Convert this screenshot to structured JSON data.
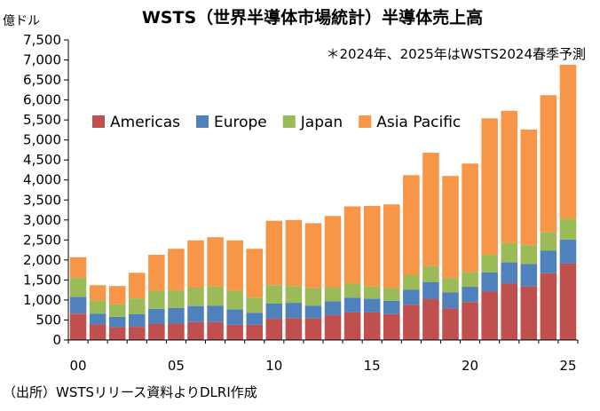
{
  "chart_data": {
    "type": "bar",
    "stacked": true,
    "title": "WSTS（世界半導体市場統計）半導体売上高",
    "ylabel": "億ドル",
    "note": "＊2024年、2025年はWSTS2024春季予測",
    "source": "（出所）WSTSリリース資料よりDLRI作成",
    "ylim": [
      0,
      7500
    ],
    "y_ticks": [
      "0",
      "500",
      "1,000",
      "1,500",
      "2,000",
      "2,500",
      "3,000",
      "3,500",
      "4,000",
      "4,500",
      "5,000",
      "5,500",
      "6,000",
      "6,500",
      "7,000",
      "7,500"
    ],
    "y_tick_values": [
      0,
      500,
      1000,
      1500,
      2000,
      2500,
      3000,
      3500,
      4000,
      4500,
      5000,
      5500,
      6000,
      6500,
      7000,
      7500
    ],
    "x_tick_labels": [
      "00",
      "05",
      "10",
      "15",
      "20",
      "25"
    ],
    "categories": [
      "2000",
      "2001",
      "2002",
      "2003",
      "2004",
      "2005",
      "2006",
      "2007",
      "2008",
      "2009",
      "2010",
      "2011",
      "2012",
      "2013",
      "2014",
      "2015",
      "2016",
      "2017",
      "2018",
      "2019",
      "2020",
      "2021",
      "2022",
      "2023",
      "2024",
      "2025"
    ],
    "legend_position": "top-left",
    "series": [
      {
        "name": "Americas",
        "color": "#C0504D",
        "values": [
          660,
          390,
          320,
          330,
          400,
          410,
          450,
          450,
          380,
          380,
          530,
          550,
          540,
          620,
          690,
          690,
          650,
          880,
          1020,
          790,
          950,
          1210,
          1410,
          1340,
          1670,
          1910
        ]
      },
      {
        "name": "Europe",
        "color": "#4F81BD",
        "values": [
          420,
          270,
          260,
          320,
          380,
          390,
          400,
          410,
          390,
          300,
          380,
          380,
          320,
          350,
          370,
          340,
          330,
          380,
          430,
          400,
          380,
          480,
          530,
          560,
          560,
          600
        ]
      },
      {
        "name": "Japan",
        "color": "#9BBB59",
        "values": [
          470,
          330,
          310,
          390,
          450,
          440,
          460,
          480,
          470,
          380,
          460,
          420,
          430,
          350,
          350,
          310,
          320,
          360,
          400,
          360,
          370,
          440,
          480,
          470,
          460,
          520
        ]
      },
      {
        "name": "Asia Pacific",
        "color": "#F79646",
        "values": [
          520,
          380,
          460,
          640,
          900,
          1040,
          1180,
          1230,
          1250,
          1220,
          1610,
          1650,
          1630,
          1780,
          1930,
          2010,
          2090,
          2500,
          2830,
          2550,
          2710,
          3410,
          3310,
          2890,
          3430,
          3850
        ]
      }
    ]
  }
}
